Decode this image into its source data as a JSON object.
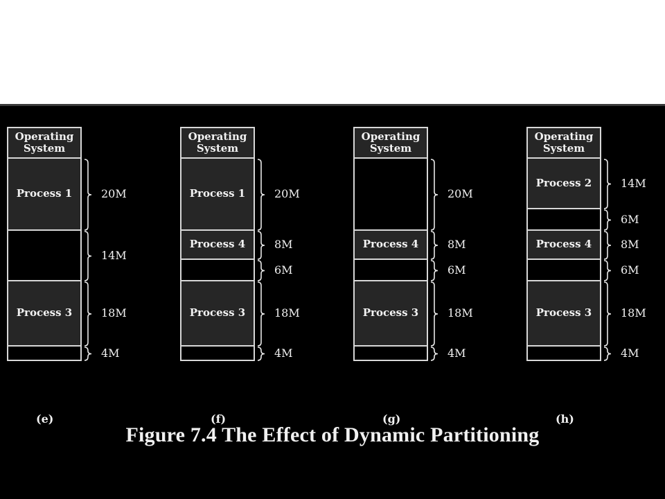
{
  "title": "Figure 7.4  The Effect of Dynamic Partitioning",
  "colors": {
    "background": "#000000",
    "process_fill": "#262626",
    "border": "#d8d8d8",
    "text": "#f2f2f2"
  },
  "diagrams": [
    {
      "caption": "(e)",
      "segments": [
        {
          "label": "Operating System",
          "type": "os",
          "size": ""
        },
        {
          "label": "Process 1",
          "type": "process",
          "size": "20M"
        },
        {
          "label": "",
          "type": "free",
          "size": "14M"
        },
        {
          "label": "Process 3",
          "type": "process",
          "size": "18M"
        },
        {
          "label": "",
          "type": "free",
          "size": "4M"
        }
      ]
    },
    {
      "caption": "(f)",
      "segments": [
        {
          "label": "Operating System",
          "type": "os",
          "size": ""
        },
        {
          "label": "Process 1",
          "type": "process",
          "size": "20M"
        },
        {
          "label": "Process 4",
          "type": "process",
          "size": "8M"
        },
        {
          "label": "",
          "type": "free",
          "size": "6M"
        },
        {
          "label": "Process 3",
          "type": "process",
          "size": "18M"
        },
        {
          "label": "",
          "type": "free",
          "size": "4M"
        }
      ]
    },
    {
      "caption": "(g)",
      "segments": [
        {
          "label": "Operating System",
          "type": "os",
          "size": ""
        },
        {
          "label": "",
          "type": "free",
          "size": "20M"
        },
        {
          "label": "Process 4",
          "type": "process",
          "size": "8M"
        },
        {
          "label": "",
          "type": "free",
          "size": "6M"
        },
        {
          "label": "Process 3",
          "type": "process",
          "size": "18M"
        },
        {
          "label": "",
          "type": "free",
          "size": "4M"
        }
      ]
    },
    {
      "caption": "(h)",
      "segments": [
        {
          "label": "Operating System",
          "type": "os",
          "size": ""
        },
        {
          "label": "Process 2",
          "type": "process",
          "size": "14M"
        },
        {
          "label": "",
          "type": "free",
          "size": "6M"
        },
        {
          "label": "Process 4",
          "type": "process",
          "size": "8M"
        },
        {
          "label": "",
          "type": "free",
          "size": "6M"
        },
        {
          "label": "Process 3",
          "type": "process",
          "size": "18M"
        },
        {
          "label": "",
          "type": "free",
          "size": "4M"
        }
      ]
    }
  ]
}
